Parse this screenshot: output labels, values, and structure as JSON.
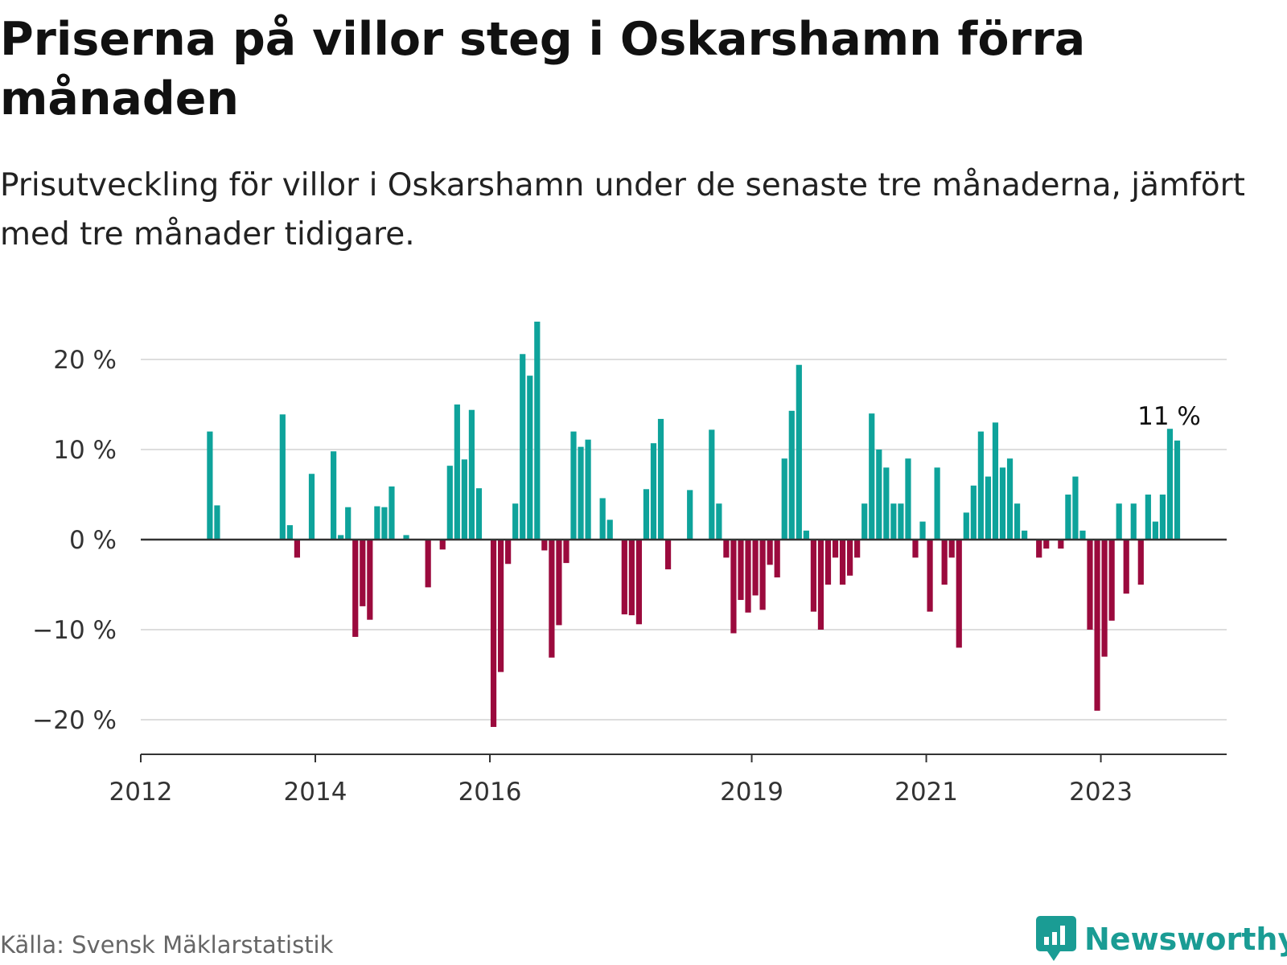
{
  "header": {
    "title": "Priserna på villor steg i Oskarshamn förra månaden",
    "subtitle": "Prisutveckling för villor i Oskarshamn under de senaste tre månaderna, jämfört med tre månader tidigare."
  },
  "footer": {
    "source": "Källa: Svensk Mäklarstatistik",
    "logo_text": "Newsworthy"
  },
  "colors": {
    "positive": "#0ea39b",
    "negative": "#9b0a3d",
    "grid": "#dddddd",
    "axis": "#333333"
  },
  "chart_data": {
    "type": "bar",
    "title": "Priserna på villor steg i Oskarshamn förra månaden",
    "xlabel": "",
    "ylabel": "",
    "ylim": [
      -24,
      25
    ],
    "y_ticks": [
      20,
      10,
      0,
      -10,
      -20
    ],
    "y_tick_labels": [
      "20 %",
      "10 %",
      "0 %",
      "−10 %",
      "−20 %"
    ],
    "x_range": [
      "2012-01",
      "2024-06"
    ],
    "x_ticks": [
      "2012",
      "2014",
      "2016",
      "2019",
      "2021",
      "2023"
    ],
    "annotation": {
      "text": "11 %",
      "x": "2023-11"
    },
    "x": [
      "2012-10",
      "2012-11",
      "2013-08",
      "2013-09",
      "2013-10",
      "2013-12",
      "2014-03",
      "2014-04",
      "2014-05",
      "2014-06",
      "2014-07",
      "2014-08",
      "2014-09",
      "2014-10",
      "2014-11",
      "2015-01",
      "2015-04",
      "2015-06",
      "2015-07",
      "2015-08",
      "2015-09",
      "2015-10",
      "2015-11",
      "2016-01",
      "2016-02",
      "2016-03",
      "2016-04",
      "2016-05",
      "2016-06",
      "2016-07",
      "2016-08",
      "2016-09",
      "2016-10",
      "2016-11",
      "2016-12",
      "2017-01",
      "2017-02",
      "2017-04",
      "2017-05",
      "2017-07",
      "2017-08",
      "2017-09",
      "2017-10",
      "2017-11",
      "2017-12",
      "2018-01",
      "2018-04",
      "2018-07",
      "2018-08",
      "2018-09",
      "2018-10",
      "2018-11",
      "2018-12",
      "2019-01",
      "2019-02",
      "2019-03",
      "2019-04",
      "2019-05",
      "2019-06",
      "2019-07",
      "2019-08",
      "2019-09",
      "2019-10",
      "2019-11",
      "2019-12",
      "2020-01",
      "2020-02",
      "2020-03",
      "2020-04",
      "2020-05",
      "2020-06",
      "2020-07",
      "2020-08",
      "2020-09",
      "2020-10",
      "2020-11",
      "2020-12",
      "2021-01",
      "2021-02",
      "2021-03",
      "2021-04",
      "2021-05",
      "2021-06",
      "2021-07",
      "2021-08",
      "2021-09",
      "2021-10",
      "2021-11",
      "2021-12",
      "2022-01",
      "2022-02",
      "2022-04",
      "2022-05",
      "2022-07",
      "2022-08",
      "2022-09",
      "2022-10",
      "2022-11",
      "2022-12",
      "2023-01",
      "2023-02",
      "2023-03",
      "2023-04",
      "2023-05",
      "2023-06",
      "2023-07",
      "2023-08",
      "2023-09",
      "2023-10",
      "2023-11"
    ],
    "values": [
      12.0,
      3.8,
      13.9,
      1.6,
      -2.0,
      7.3,
      9.8,
      0.5,
      3.6,
      -10.8,
      -7.4,
      -8.9,
      3.7,
      3.6,
      5.9,
      0.5,
      -5.3,
      -1.1,
      8.2,
      15.0,
      8.9,
      14.4,
      5.7,
      -20.8,
      -14.7,
      -2.7,
      4.0,
      20.6,
      18.2,
      24.2,
      -1.2,
      -13.1,
      -9.5,
      -2.6,
      12.0,
      10.3,
      11.1,
      4.6,
      2.2,
      -8.3,
      -8.4,
      -9.4,
      5.6,
      10.7,
      13.4,
      -3.3,
      5.5,
      12.2,
      4.0,
      -2.0,
      -10.4,
      -6.7,
      -8.1,
      -6.2,
      -7.8,
      -2.8,
      -4.2,
      9.0,
      14.3,
      19.4,
      1.0,
      -8.0,
      -10.0,
      -5.0,
      -2.0,
      -5.0,
      -4.0,
      -2.0,
      4.0,
      14.0,
      10.0,
      8.0,
      4.0,
      4.0,
      9.0,
      -2.0,
      2.0,
      -8.0,
      8.0,
      -5.0,
      -2.0,
      -12.0,
      3.0,
      6.0,
      12.0,
      7.0,
      13.0,
      8.0,
      9.0,
      4.0,
      1.0,
      -2.0,
      -1.0,
      -1.0,
      5.0,
      7.0,
      1.0,
      -10.0,
      -19.0,
      -13.0,
      -9.0,
      4.0,
      -6.0,
      4.0,
      -5.0,
      5.0,
      2.0,
      5.0,
      12.3,
      11.0
    ]
  }
}
